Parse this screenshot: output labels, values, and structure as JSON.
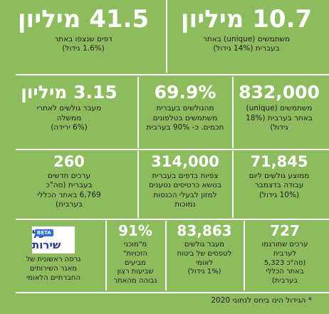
{
  "stats": [
    {
      "id": "unique-users-hebrew",
      "number": "10.7 מיליון",
      "description": "משתמשים (unique) באתר\nבעברית (14% גידול)"
    },
    {
      "id": "pages-viewed",
      "number": "41.5 מיליון",
      "description": "דפים שנצפו באתר\n(1.6% גידול)"
    },
    {
      "id": "unique-users-arabic",
      "number": "832,000",
      "description": "משתמשים (unique)\nבאתר בערבית (18%\nגידול)"
    },
    {
      "id": "mobile-share",
      "number": "69.9%",
      "description": "מהגולשים בעברית\nמשתמשים בטלפונים\nחכמים. כ- 90% בערבית"
    },
    {
      "id": "gov-referrals",
      "number": "3.15 מיליון",
      "description": "מעבר גולשים לאתרי\nממשלה\n(6% ירידה)"
    },
    {
      "id": "daily-users-december",
      "number": "71,845",
      "description": "ממוצע גולשים ליום\nעבודה בדצמבר\n(10% גידול)"
    },
    {
      "id": "calculator-views",
      "number": "314,000",
      "description": "צפיות בדפים בעברית\nבנושא כרטיסים נטענים\nלמזון לבעלי הכנסות\nנמוכות"
    },
    {
      "id": "new-articles",
      "number": "260",
      "description": "ערכים חדשים\nבעברית (סה\"כ\n6,769 באתר הכללי\nבערבית)"
    },
    {
      "id": "translated-articles",
      "number": "727",
      "description": "ערכים שתורגמו\nלערבית\n(סה\"כ 5,323\nבאתר הכללי\nבערבית)"
    },
    {
      "id": "insurance-form-referrals",
      "number": "83,863",
      "description": "מעבר גולשים\nלטפסים של ביטוח\nלאומי\n(1% גידול)"
    },
    {
      "id": "satisfaction-rate",
      "number": "91%",
      "description": "מ\"מוכני\nהזכויות\"\nמביעים\nשביעות רצון\nגבוהה מהאתר"
    },
    {
      "id": "beta-version",
      "description": "גרסה ראשונית של\nמאגר השירותים\nהחברתיים הלאומי"
    }
  ],
  "logo": {
    "line1": "כל",
    "line2": "שירות",
    "badge": "BETA"
  },
  "footnote": "* הגידול הינו ביחס לנתוני 2020",
  "colors": {
    "background": "#8dbb5d",
    "number": "#ffffff",
    "text": "#1d1d1d",
    "divider": "#ffffff",
    "logo_text": "#2a3b8f",
    "beta_badge": "#2a6fdb"
  }
}
